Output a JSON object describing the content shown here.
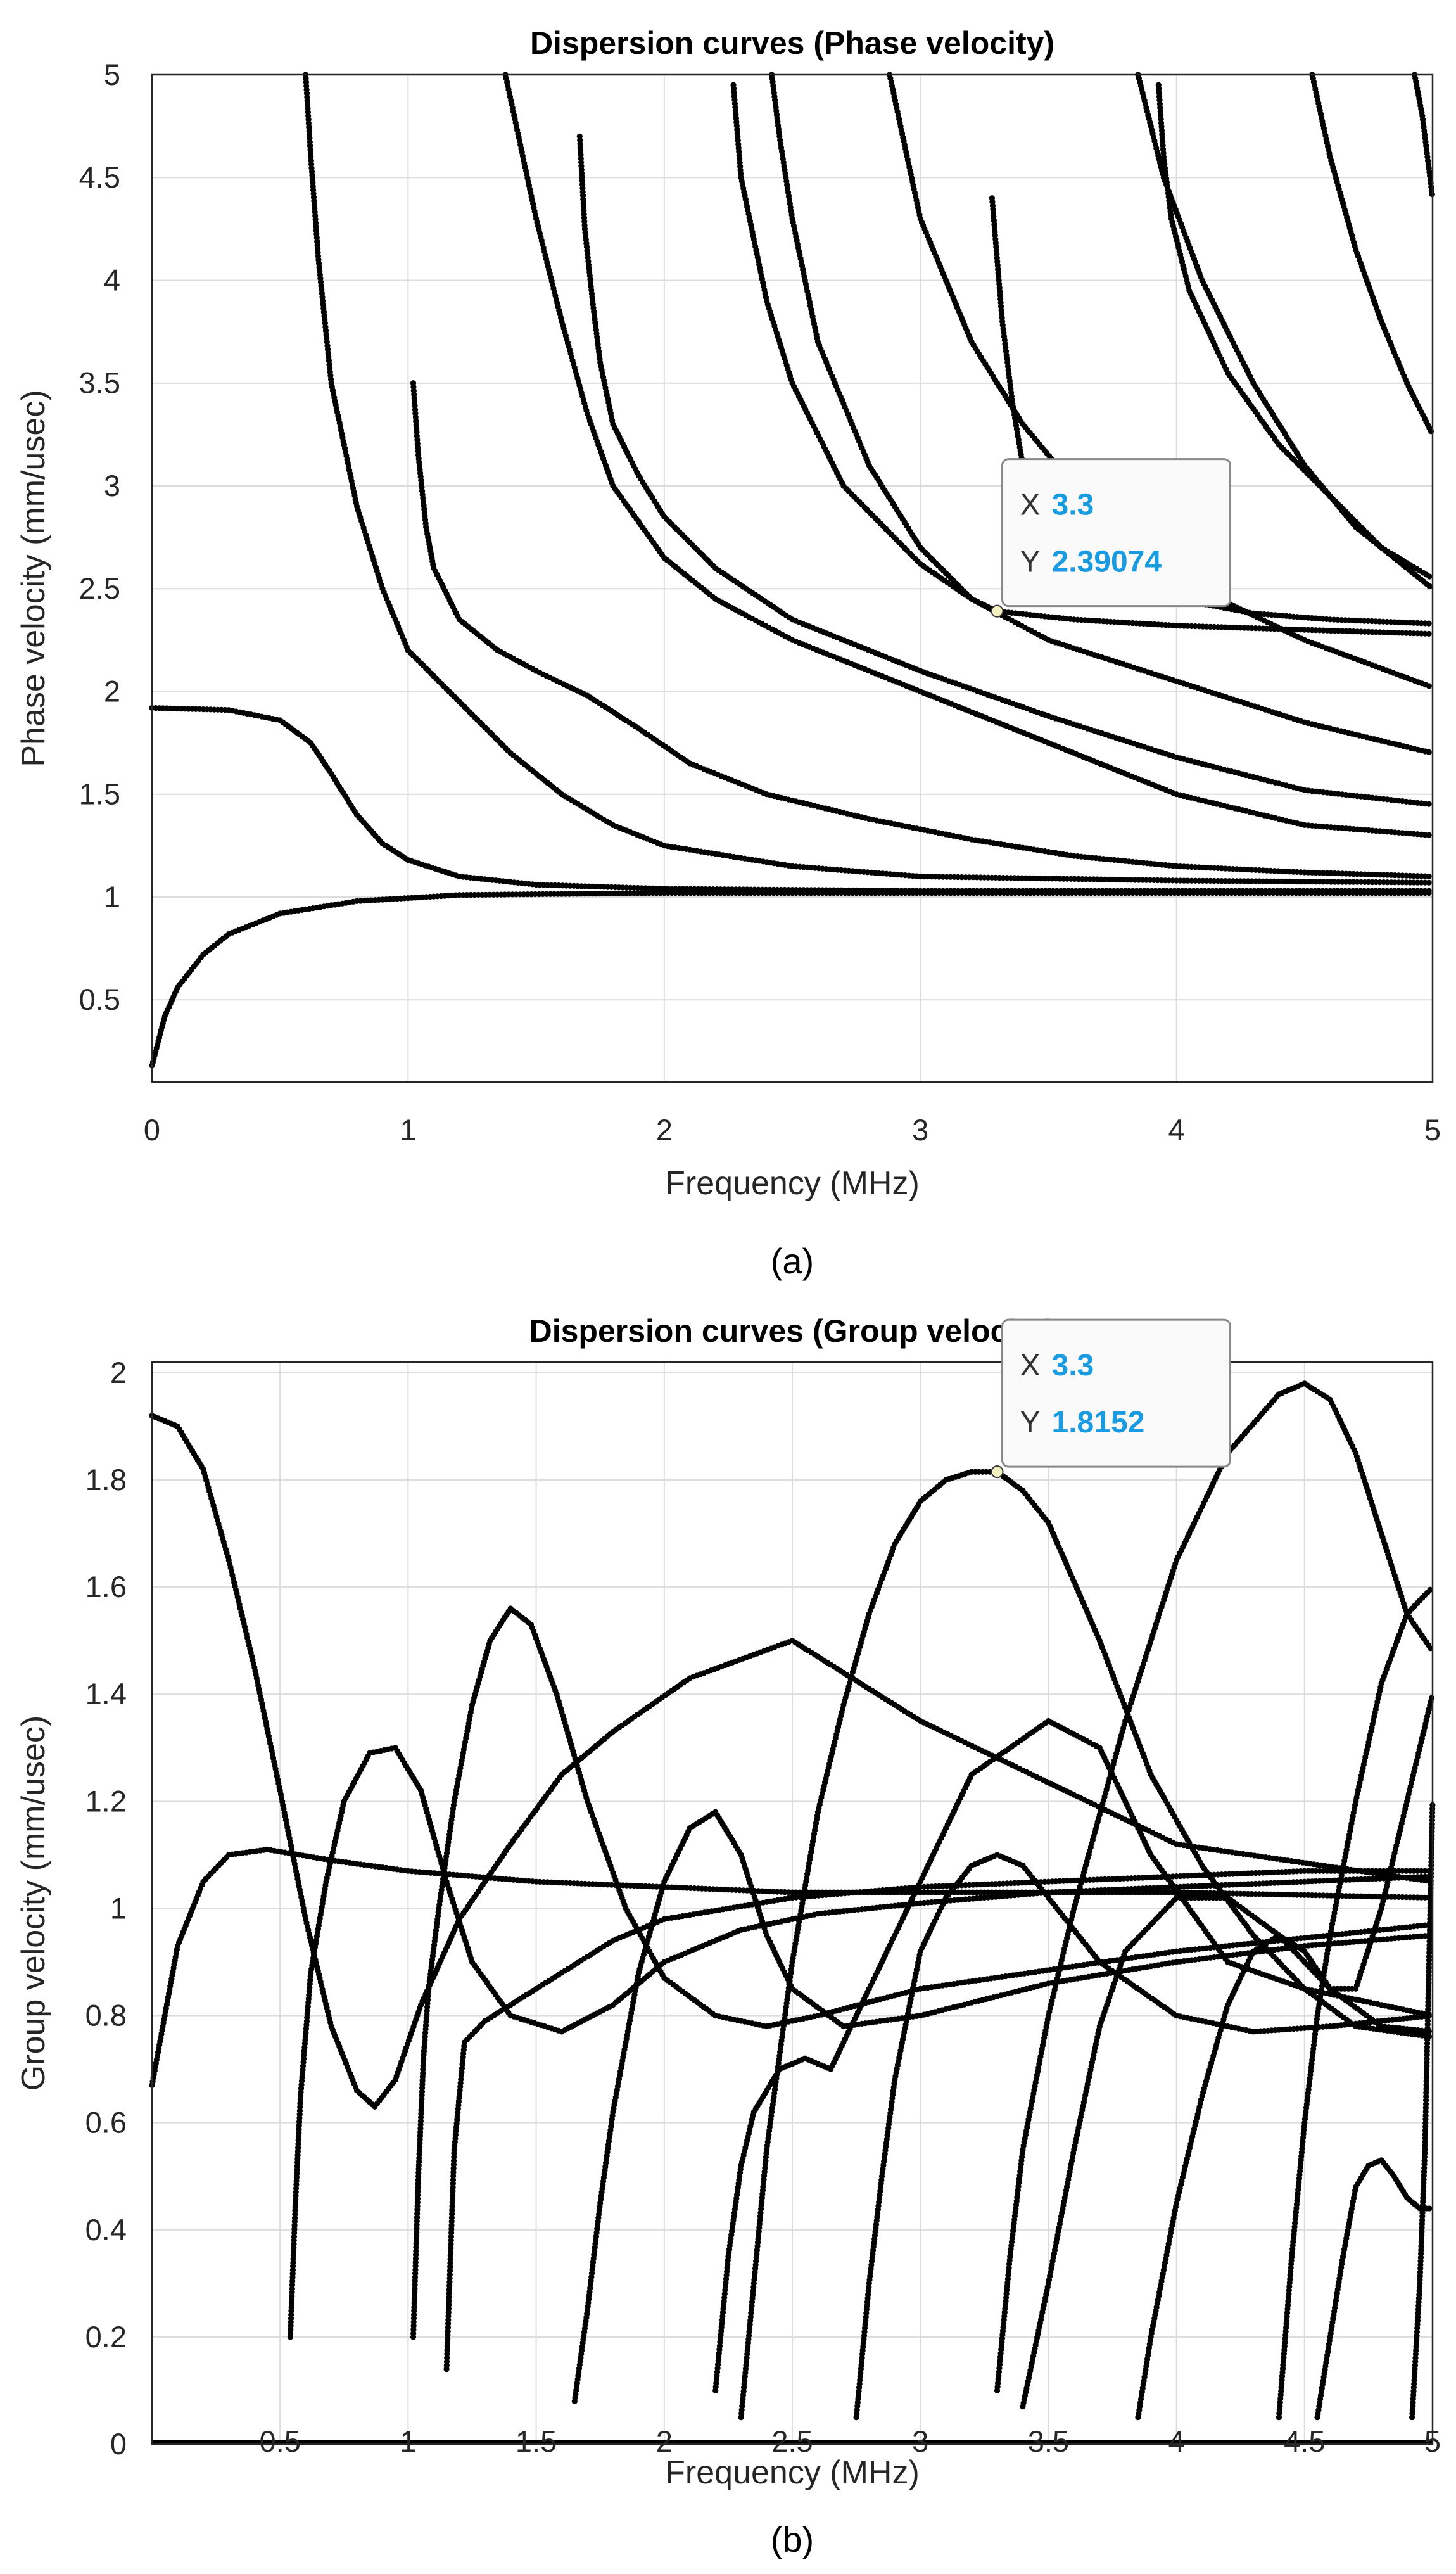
{
  "chart_data": [
    {
      "type": "scatter",
      "title": "Dispersion curves (Phase velocity)",
      "xlabel": "Frequency (MHz)",
      "ylabel": "Phase velocity (mm/usec)",
      "xlim": [
        0,
        5
      ],
      "ylim": [
        0.1,
        5
      ],
      "xticks": [
        "0",
        "1",
        "2",
        "3",
        "4",
        "5"
      ],
      "yticks": [
        "0.5",
        "1",
        "1.5",
        "2",
        "2.5",
        "3",
        "3.5",
        "4",
        "4.5",
        "5"
      ],
      "grid": true,
      "caption": "(a)",
      "series": [
        {
          "x": [
            0,
            0.05,
            0.1,
            0.2,
            0.3,
            0.5,
            0.8,
            1.2,
            2,
            3,
            5
          ],
          "y": [
            0.18,
            0.42,
            0.56,
            0.72,
            0.82,
            0.92,
            0.98,
            1.01,
            1.02,
            1.02,
            1.02
          ]
        },
        {
          "x": [
            0,
            0.3,
            0.5,
            0.62,
            0.7,
            0.8,
            0.9,
            1.0,
            1.2,
            1.5,
            2,
            3,
            5
          ],
          "y": [
            1.92,
            1.91,
            1.86,
            1.75,
            1.6,
            1.4,
            1.26,
            1.18,
            1.1,
            1.06,
            1.04,
            1.03,
            1.03
          ]
        },
        {
          "x": [
            0.6,
            0.62,
            0.65,
            0.7,
            0.8,
            0.9,
            1.0,
            1.2,
            1.4,
            1.6,
            1.8,
            2,
            2.5,
            3,
            4,
            5
          ],
          "y": [
            5,
            4.6,
            4.1,
            3.5,
            2.9,
            2.5,
            2.2,
            1.95,
            1.7,
            1.5,
            1.35,
            1.25,
            1.15,
            1.1,
            1.08,
            1.07
          ]
        },
        {
          "x": [
            1.02,
            1.04,
            1.07,
            1.1,
            1.2,
            1.35,
            1.5,
            1.7,
            1.9,
            2.1,
            2.4,
            2.8,
            3.2,
            3.6,
            4,
            4.5,
            5
          ],
          "y": [
            3.5,
            3.15,
            2.8,
            2.6,
            2.35,
            2.2,
            2.1,
            1.98,
            1.82,
            1.65,
            1.5,
            1.38,
            1.28,
            1.2,
            1.15,
            1.12,
            1.1
          ]
        },
        {
          "x": [
            1.38,
            1.5,
            1.6,
            1.7,
            1.8,
            2,
            2.2,
            2.5,
            3,
            3.5,
            4,
            4.5,
            5
          ],
          "y": [
            5,
            4.3,
            3.8,
            3.35,
            3.0,
            2.65,
            2.45,
            2.25,
            2.0,
            1.75,
            1.5,
            1.35,
            1.3
          ]
        },
        {
          "x": [
            1.67,
            1.69,
            1.72,
            1.75,
            1.8,
            1.9,
            2,
            2.2,
            2.5,
            3,
            3.5,
            4,
            4.5,
            5
          ],
          "y": [
            4.7,
            4.25,
            3.9,
            3.6,
            3.3,
            3.05,
            2.85,
            2.6,
            2.35,
            2.1,
            1.88,
            1.68,
            1.52,
            1.45
          ]
        },
        {
          "x": [
            2.27,
            2.3,
            2.4,
            2.5,
            2.7,
            3,
            3.2,
            3.5,
            4,
            4.5,
            5
          ],
          "y": [
            4.95,
            4.5,
            3.9,
            3.5,
            3.0,
            2.62,
            2.45,
            2.25,
            2.05,
            1.85,
            1.7
          ]
        },
        {
          "x": [
            2.42,
            2.45,
            2.5,
            2.6,
            2.8,
            3,
            3.2,
            3.3,
            3.6,
            4,
            4.5,
            5
          ],
          "y": [
            5,
            4.7,
            4.3,
            3.7,
            3.1,
            2.7,
            2.45,
            2.39,
            2.35,
            2.32,
            2.3,
            2.28
          ]
        },
        {
          "x": [
            2.88,
            3,
            3.2,
            3.4,
            3.7,
            4,
            4.5,
            5
          ],
          "y": [
            5,
            4.3,
            3.7,
            3.3,
            2.85,
            2.55,
            2.25,
            2.02
          ]
        },
        {
          "x": [
            3.28,
            3.32,
            3.36,
            3.4,
            3.45,
            3.5,
            3.6,
            3.8,
            4,
            4.3,
            4.6,
            5
          ],
          "y": [
            4.4,
            3.8,
            3.4,
            3.1,
            2.95,
            2.85,
            2.7,
            2.55,
            2.45,
            2.38,
            2.35,
            2.33
          ]
        },
        {
          "x": [
            3.85,
            3.95,
            4.1,
            4.3,
            4.5,
            4.7,
            5
          ],
          "y": [
            5,
            4.5,
            4.0,
            3.5,
            3.1,
            2.8,
            2.5
          ]
        },
        {
          "x": [
            3.93,
            3.95,
            3.98,
            4.05,
            4.2,
            4.4,
            4.6,
            4.8,
            5
          ],
          "y": [
            4.95,
            4.6,
            4.3,
            3.95,
            3.55,
            3.2,
            2.95,
            2.7,
            2.55
          ]
        },
        {
          "x": [
            4.53,
            4.6,
            4.7,
            4.8,
            4.9,
            5
          ],
          "y": [
            5,
            4.6,
            4.15,
            3.8,
            3.5,
            3.25
          ]
        },
        {
          "x": [
            4.93,
            4.96,
            4.98,
            5
          ],
          "y": [
            5,
            4.8,
            4.6,
            4.4
          ]
        }
      ],
      "datatip": {
        "x_key": "X",
        "x_value": "3.3",
        "y_key": "Y",
        "y_value": "2.39074",
        "x": 3.3,
        "y": 2.39074
      }
    },
    {
      "type": "scatter",
      "title": "Dispersion curves (Group velocity)",
      "xlabel": "Frequency (MHz)",
      "ylabel": "Group velocity (mm/usec)",
      "xlim": [
        0,
        5
      ],
      "ylim": [
        0,
        2.02
      ],
      "xticks": [
        "0.5",
        "1",
        "1.5",
        "2",
        "2.5",
        "3",
        "3.5",
        "4",
        "4.5",
        "5"
      ],
      "yticks": [
        "0",
        "0.2",
        "0.4",
        "0.6",
        "0.8",
        "1",
        "1.2",
        "1.4",
        "1.6",
        "1.8",
        "2"
      ],
      "grid": true,
      "caption": "(b)",
      "series": [
        {
          "x": [
            0,
            0.1,
            0.2,
            0.3,
            0.4,
            0.5,
            0.6,
            0.7,
            0.8,
            0.87,
            0.95,
            1.05,
            1.2,
            1.4,
            1.6,
            1.8,
            2.1,
            2.5,
            3,
            4,
            5
          ],
          "y": [
            1.92,
            1.9,
            1.82,
            1.65,
            1.45,
            1.22,
            0.98,
            0.78,
            0.66,
            0.63,
            0.68,
            0.82,
            0.98,
            1.12,
            1.25,
            1.33,
            1.43,
            1.5,
            1.35,
            1.12,
            1.05
          ]
        },
        {
          "x": [
            0,
            0.05,
            0.1,
            0.2,
            0.3,
            0.45,
            0.7,
            1,
            1.5,
            2,
            2.5,
            3,
            4,
            5
          ],
          "y": [
            0.67,
            0.8,
            0.93,
            1.05,
            1.1,
            1.11,
            1.09,
            1.07,
            1.05,
            1.04,
            1.03,
            1.03,
            1.03,
            1.02
          ]
        },
        {
          "x": [
            0.54,
            0.56,
            0.58,
            0.62,
            0.68,
            0.75,
            0.85,
            0.95,
            1.05,
            1.15,
            1.25,
            1.4,
            1.6,
            1.8,
            2,
            2.3,
            2.6,
            3,
            3.5,
            4,
            4.5,
            5
          ],
          "y": [
            0.2,
            0.45,
            0.65,
            0.88,
            1.05,
            1.2,
            1.29,
            1.3,
            1.22,
            1.05,
            0.9,
            0.8,
            0.77,
            0.82,
            0.9,
            0.96,
            0.99,
            1.01,
            1.03,
            1.04,
            1.05,
            1.06
          ]
        },
        {
          "x": [
            1.02,
            1.04,
            1.06,
            1.08,
            1.12,
            1.18,
            1.25,
            1.32,
            1.4,
            1.48,
            1.58,
            1.7,
            1.85,
            2,
            2.2,
            2.4,
            2.6,
            3,
            4,
            5
          ],
          "y": [
            0.2,
            0.5,
            0.72,
            0.85,
            1.0,
            1.2,
            1.38,
            1.5,
            1.56,
            1.53,
            1.4,
            1.2,
            1.0,
            0.87,
            0.8,
            0.78,
            0.8,
            0.85,
            0.92,
            0.97
          ]
        },
        {
          "x": [
            1.15,
            1.18,
            1.22,
            1.3,
            1.4,
            1.6,
            1.8,
            2,
            2.5,
            3,
            3.5,
            4,
            4.5,
            5
          ],
          "y": [
            0.14,
            0.55,
            0.75,
            0.79,
            0.82,
            0.88,
            0.94,
            0.98,
            1.02,
            1.04,
            1.05,
            1.06,
            1.07,
            1.07
          ]
        },
        {
          "x": [
            1.65,
            1.7,
            1.75,
            1.8,
            1.85,
            1.9,
            2,
            2.1,
            2.2,
            2.3,
            2.4,
            2.5,
            2.7,
            3,
            3.5,
            4,
            4.5,
            5
          ],
          "y": [
            0.08,
            0.25,
            0.45,
            0.62,
            0.75,
            0.88,
            1.05,
            1.15,
            1.18,
            1.1,
            0.95,
            0.85,
            0.78,
            0.8,
            0.86,
            0.9,
            0.93,
            0.95
          ]
        },
        {
          "x": [
            2.2,
            2.25,
            2.3,
            2.35,
            2.45,
            2.55,
            2.65,
            2.8,
            3,
            3.2,
            3.5,
            3.7,
            3.9,
            4.2,
            4.5,
            4.8,
            5
          ],
          "y": [
            0.1,
            0.35,
            0.52,
            0.62,
            0.7,
            0.72,
            0.7,
            0.85,
            1.05,
            1.25,
            1.35,
            1.3,
            1.1,
            0.9,
            0.85,
            0.82,
            0.8
          ]
        },
        {
          "x": [
            2.3,
            2.35,
            2.4,
            2.5,
            2.6,
            2.7,
            2.8,
            2.9,
            3,
            3.1,
            3.2,
            3.3,
            3.4,
            3.5,
            3.7,
            3.9,
            4.1,
            4.3,
            4.5,
            4.7,
            4.85,
            5
          ],
          "y": [
            0.05,
            0.3,
            0.55,
            0.9,
            1.18,
            1.38,
            1.55,
            1.68,
            1.76,
            1.8,
            1.815,
            1.8152,
            1.78,
            1.72,
            1.5,
            1.25,
            1.08,
            0.95,
            0.85,
            0.78,
            0.77,
            0.76
          ]
        },
        {
          "x": [
            2.75,
            2.8,
            2.85,
            2.9,
            3,
            3.1,
            3.2,
            3.3,
            3.4,
            3.5,
            3.7,
            4,
            4.3,
            4.6,
            5
          ],
          "y": [
            0.05,
            0.3,
            0.5,
            0.68,
            0.92,
            1.02,
            1.08,
            1.1,
            1.08,
            1.02,
            0.9,
            0.8,
            0.77,
            0.78,
            0.8
          ]
        },
        {
          "x": [
            3.3,
            3.35,
            3.4,
            3.5,
            3.6,
            3.8,
            4,
            4.2,
            4.4,
            4.5,
            4.6,
            4.7,
            4.8,
            4.9,
            5
          ],
          "y": [
            0.1,
            0.35,
            0.55,
            0.8,
            1.0,
            1.35,
            1.65,
            1.85,
            1.96,
            1.98,
            1.95,
            1.85,
            1.7,
            1.55,
            1.48
          ]
        },
        {
          "x": [
            3.4,
            3.5,
            3.6,
            3.7,
            3.8,
            4,
            4.2,
            4.4,
            4.6,
            4.8,
            5
          ],
          "y": [
            0.07,
            0.3,
            0.55,
            0.78,
            0.92,
            1.02,
            1.02,
            0.95,
            0.85,
            0.78,
            0.77
          ]
        },
        {
          "x": [
            3.85,
            3.9,
            4,
            4.1,
            4.2,
            4.3,
            4.4,
            4.5,
            4.6,
            4.7,
            4.8,
            4.9,
            5
          ],
          "y": [
            0.05,
            0.2,
            0.45,
            0.65,
            0.82,
            0.92,
            0.95,
            0.92,
            0.85,
            0.85,
            1.0,
            1.2,
            1.4
          ]
        },
        {
          "x": [
            4.4,
            4.45,
            4.5,
            4.55,
            4.6,
            4.7,
            4.8,
            4.9,
            5
          ],
          "y": [
            0.05,
            0.35,
            0.6,
            0.8,
            0.95,
            1.2,
            1.42,
            1.55,
            1.6
          ]
        },
        {
          "x": [
            4.55,
            4.6,
            4.65,
            4.7,
            4.75,
            4.8,
            4.85,
            4.9,
            4.95,
            5
          ],
          "y": [
            0.05,
            0.2,
            0.35,
            0.48,
            0.52,
            0.53,
            0.5,
            0.46,
            0.44,
            0.44
          ]
        },
        {
          "x": [
            4.92,
            4.95,
            4.97,
            5
          ],
          "y": [
            0.05,
            0.3,
            0.55,
            1.2
          ]
        }
      ],
      "datatip": {
        "x_key": "X",
        "x_value": "3.3",
        "y_key": "Y",
        "y_value": "1.8152",
        "x": 3.3,
        "y": 1.8152
      }
    }
  ]
}
